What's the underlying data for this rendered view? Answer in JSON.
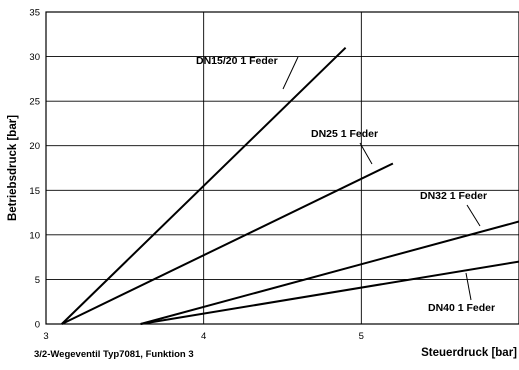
{
  "chart_data": {
    "type": "line",
    "xlabel": "Steuerdruck [bar]",
    "ylabel": "Betriebsdruck [bar]",
    "xlim": [
      3,
      6
    ],
    "ylim": [
      0,
      35
    ],
    "x_ticks": [
      "3",
      "4",
      "5"
    ],
    "y_ticks": [
      "0",
      "5",
      "10",
      "15",
      "20",
      "25",
      "30",
      "35"
    ],
    "grid": true,
    "legend": "none (series labelled inline)",
    "series": [
      {
        "name": "DN15/20  1 Feder",
        "x": [
          3.1,
          4.9
        ],
        "y": [
          0,
          31
        ]
      },
      {
        "name": "DN25  1 Feder",
        "x": [
          3.1,
          5.2
        ],
        "y": [
          0,
          18
        ]
      },
      {
        "name": "DN32  1 Feder",
        "x": [
          3.6,
          6.0
        ],
        "y": [
          0,
          11.5
        ]
      },
      {
        "name": "DN40  1 Feder",
        "x": [
          3.6,
          6.0
        ],
        "y": [
          0,
          7
        ]
      }
    ]
  },
  "footer": "3/2-Wegeventil Typ7081,  Funktion 3"
}
